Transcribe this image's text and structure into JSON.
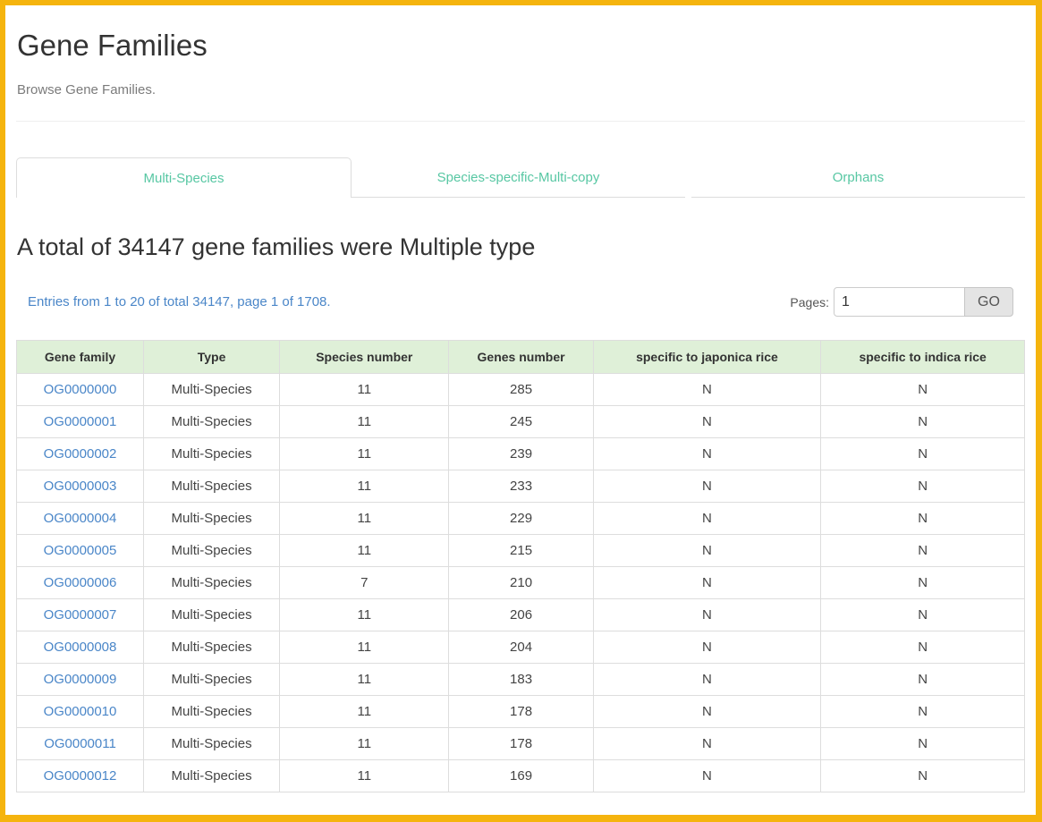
{
  "page": {
    "title": "Gene Families",
    "subtitle": "Browse Gene Families."
  },
  "tabs": [
    {
      "label": "Multi-Species",
      "active": true
    },
    {
      "label": "Species-specific-Multi-copy",
      "active": false
    },
    {
      "label": "Orphans",
      "active": false
    }
  ],
  "summary_heading": "A total of 34147 gene families were Multiple type",
  "pagination": {
    "entries_text": "Entries from 1 to 20 of total 34147, page 1 of 1708.",
    "pages_label": "Pages:",
    "page_input_value": "1",
    "go_label": "GO"
  },
  "table": {
    "columns": [
      "Gene family",
      "Type",
      "Species number",
      "Genes number",
      "specific to japonica rice",
      "specific to indica rice"
    ],
    "rows": [
      [
        "OG0000000",
        "Multi-Species",
        "11",
        "285",
        "N",
        "N"
      ],
      [
        "OG0000001",
        "Multi-Species",
        "11",
        "245",
        "N",
        "N"
      ],
      [
        "OG0000002",
        "Multi-Species",
        "11",
        "239",
        "N",
        "N"
      ],
      [
        "OG0000003",
        "Multi-Species",
        "11",
        "233",
        "N",
        "N"
      ],
      [
        "OG0000004",
        "Multi-Species",
        "11",
        "229",
        "N",
        "N"
      ],
      [
        "OG0000005",
        "Multi-Species",
        "11",
        "215",
        "N",
        "N"
      ],
      [
        "OG0000006",
        "Multi-Species",
        "7",
        "210",
        "N",
        "N"
      ],
      [
        "OG0000007",
        "Multi-Species",
        "11",
        "206",
        "N",
        "N"
      ],
      [
        "OG0000008",
        "Multi-Species",
        "11",
        "204",
        "N",
        "N"
      ],
      [
        "OG0000009",
        "Multi-Species",
        "11",
        "183",
        "N",
        "N"
      ],
      [
        "OG0000010",
        "Multi-Species",
        "11",
        "178",
        "N",
        "N"
      ],
      [
        "OG0000011",
        "Multi-Species",
        "11",
        "178",
        "N",
        "N"
      ],
      [
        "OG0000012",
        "Multi-Species",
        "11",
        "169",
        "N",
        "N"
      ]
    ]
  },
  "colors": {
    "frame_border": "#F5B40E",
    "tab_text": "#57C7A3",
    "table_header_bg": "#DFF0D8",
    "table_border": "#DDDDDD",
    "link_blue": "#4A86C8",
    "entries_text": "#4A86C8",
    "go_button_bg": "#E4E4E4"
  }
}
